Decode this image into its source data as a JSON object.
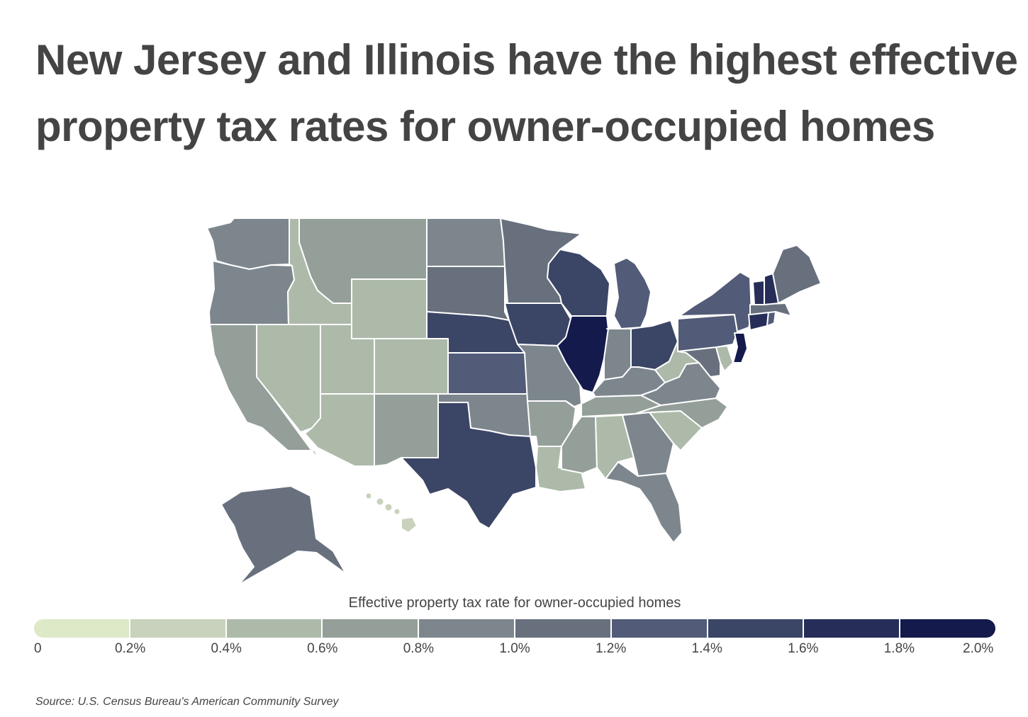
{
  "title_lines": [
    "New Jersey and Illinois have the highest effective",
    "property tax rates for owner-occupied homes"
  ],
  "legend": {
    "title": "Effective property tax rate for owner-occupied homes",
    "tick_labels": [
      "0",
      "0.2%",
      "0.4%",
      "0.6%",
      "0.8%",
      "1.0%",
      "1.2%",
      "1.4%",
      "1.6%",
      "1.8%",
      "2.0%"
    ],
    "colors": [
      "#dde9c7",
      "#c8d2bc",
      "#adbaaa",
      "#959f9a",
      "#7d868d",
      "#68707e",
      "#525b78",
      "#3b4565",
      "#262d58",
      "#141a4c"
    ]
  },
  "source": "Source: U.S. Census Bureau's American Community Survey",
  "chart_data": {
    "type": "choropleth",
    "metric": "Effective property tax rate for owner-occupied homes",
    "units": "percent",
    "scale": {
      "min": 0,
      "max": 2.0,
      "step": 0.2
    },
    "states": [
      {
        "state": "Washington",
        "abbr": "WA",
        "rate": 0.9
      },
      {
        "state": "Oregon",
        "abbr": "OR",
        "rate": 0.9
      },
      {
        "state": "California",
        "abbr": "CA",
        "rate": 0.7
      },
      {
        "state": "Nevada",
        "abbr": "NV",
        "rate": 0.5
      },
      {
        "state": "Idaho",
        "abbr": "ID",
        "rate": 0.5
      },
      {
        "state": "Montana",
        "abbr": "MT",
        "rate": 0.7
      },
      {
        "state": "Wyoming",
        "abbr": "WY",
        "rate": 0.5
      },
      {
        "state": "Utah",
        "abbr": "UT",
        "rate": 0.5
      },
      {
        "state": "Arizona",
        "abbr": "AZ",
        "rate": 0.5
      },
      {
        "state": "Colorado",
        "abbr": "CO",
        "rate": 0.5
      },
      {
        "state": "New Mexico",
        "abbr": "NM",
        "rate": 0.7
      },
      {
        "state": "North Dakota",
        "abbr": "ND",
        "rate": 0.9
      },
      {
        "state": "South Dakota",
        "abbr": "SD",
        "rate": 1.1
      },
      {
        "state": "Nebraska",
        "abbr": "NE",
        "rate": 1.5
      },
      {
        "state": "Kansas",
        "abbr": "KS",
        "rate": 1.3
      },
      {
        "state": "Oklahoma",
        "abbr": "OK",
        "rate": 0.9
      },
      {
        "state": "Texas",
        "abbr": "TX",
        "rate": 1.5
      },
      {
        "state": "Minnesota",
        "abbr": "MN",
        "rate": 1.1
      },
      {
        "state": "Iowa",
        "abbr": "IA",
        "rate": 1.5
      },
      {
        "state": "Missouri",
        "abbr": "MO",
        "rate": 0.9
      },
      {
        "state": "Arkansas",
        "abbr": "AR",
        "rate": 0.7
      },
      {
        "state": "Louisiana",
        "abbr": "LA",
        "rate": 0.5
      },
      {
        "state": "Wisconsin",
        "abbr": "WI",
        "rate": 1.5
      },
      {
        "state": "Illinois",
        "abbr": "IL",
        "rate": 1.9
      },
      {
        "state": "Michigan",
        "abbr": "MI",
        "rate": 1.3
      },
      {
        "state": "Indiana",
        "abbr": "IN",
        "rate": 0.8
      },
      {
        "state": "Ohio",
        "abbr": "OH",
        "rate": 1.5
      },
      {
        "state": "Kentucky",
        "abbr": "KY",
        "rate": 0.8
      },
      {
        "state": "Tennessee",
        "abbr": "TN",
        "rate": 0.7
      },
      {
        "state": "Mississippi",
        "abbr": "MS",
        "rate": 0.7
      },
      {
        "state": "Alabama",
        "abbr": "AL",
        "rate": 0.5
      },
      {
        "state": "Georgia",
        "abbr": "GA",
        "rate": 0.9
      },
      {
        "state": "Florida",
        "abbr": "FL",
        "rate": 0.9
      },
      {
        "state": "South Carolina",
        "abbr": "SC",
        "rate": 0.5
      },
      {
        "state": "North Carolina",
        "abbr": "NC",
        "rate": 0.7
      },
      {
        "state": "Virginia",
        "abbr": "VA",
        "rate": 0.8
      },
      {
        "state": "West Virginia",
        "abbr": "WV",
        "rate": 0.5
      },
      {
        "state": "Maryland",
        "abbr": "MD",
        "rate": 1.0
      },
      {
        "state": "Delaware",
        "abbr": "DE",
        "rate": 0.5
      },
      {
        "state": "Pennsylvania",
        "abbr": "PA",
        "rate": 1.3
      },
      {
        "state": "New Jersey",
        "abbr": "NJ",
        "rate": 1.9
      },
      {
        "state": "New York",
        "abbr": "NY",
        "rate": 1.3
      },
      {
        "state": "Connecticut",
        "abbr": "CT",
        "rate": 1.7
      },
      {
        "state": "Rhode Island",
        "abbr": "RI",
        "rate": 1.3
      },
      {
        "state": "Massachusetts",
        "abbr": "MA",
        "rate": 1.1
      },
      {
        "state": "Vermont",
        "abbr": "VT",
        "rate": 1.7
      },
      {
        "state": "New Hampshire",
        "abbr": "NH",
        "rate": 1.7
      },
      {
        "state": "Maine",
        "abbr": "ME",
        "rate": 1.1
      },
      {
        "state": "Alaska",
        "abbr": "AK",
        "rate": 1.1
      },
      {
        "state": "Hawaii",
        "abbr": "HI",
        "rate": 0.3
      }
    ]
  }
}
